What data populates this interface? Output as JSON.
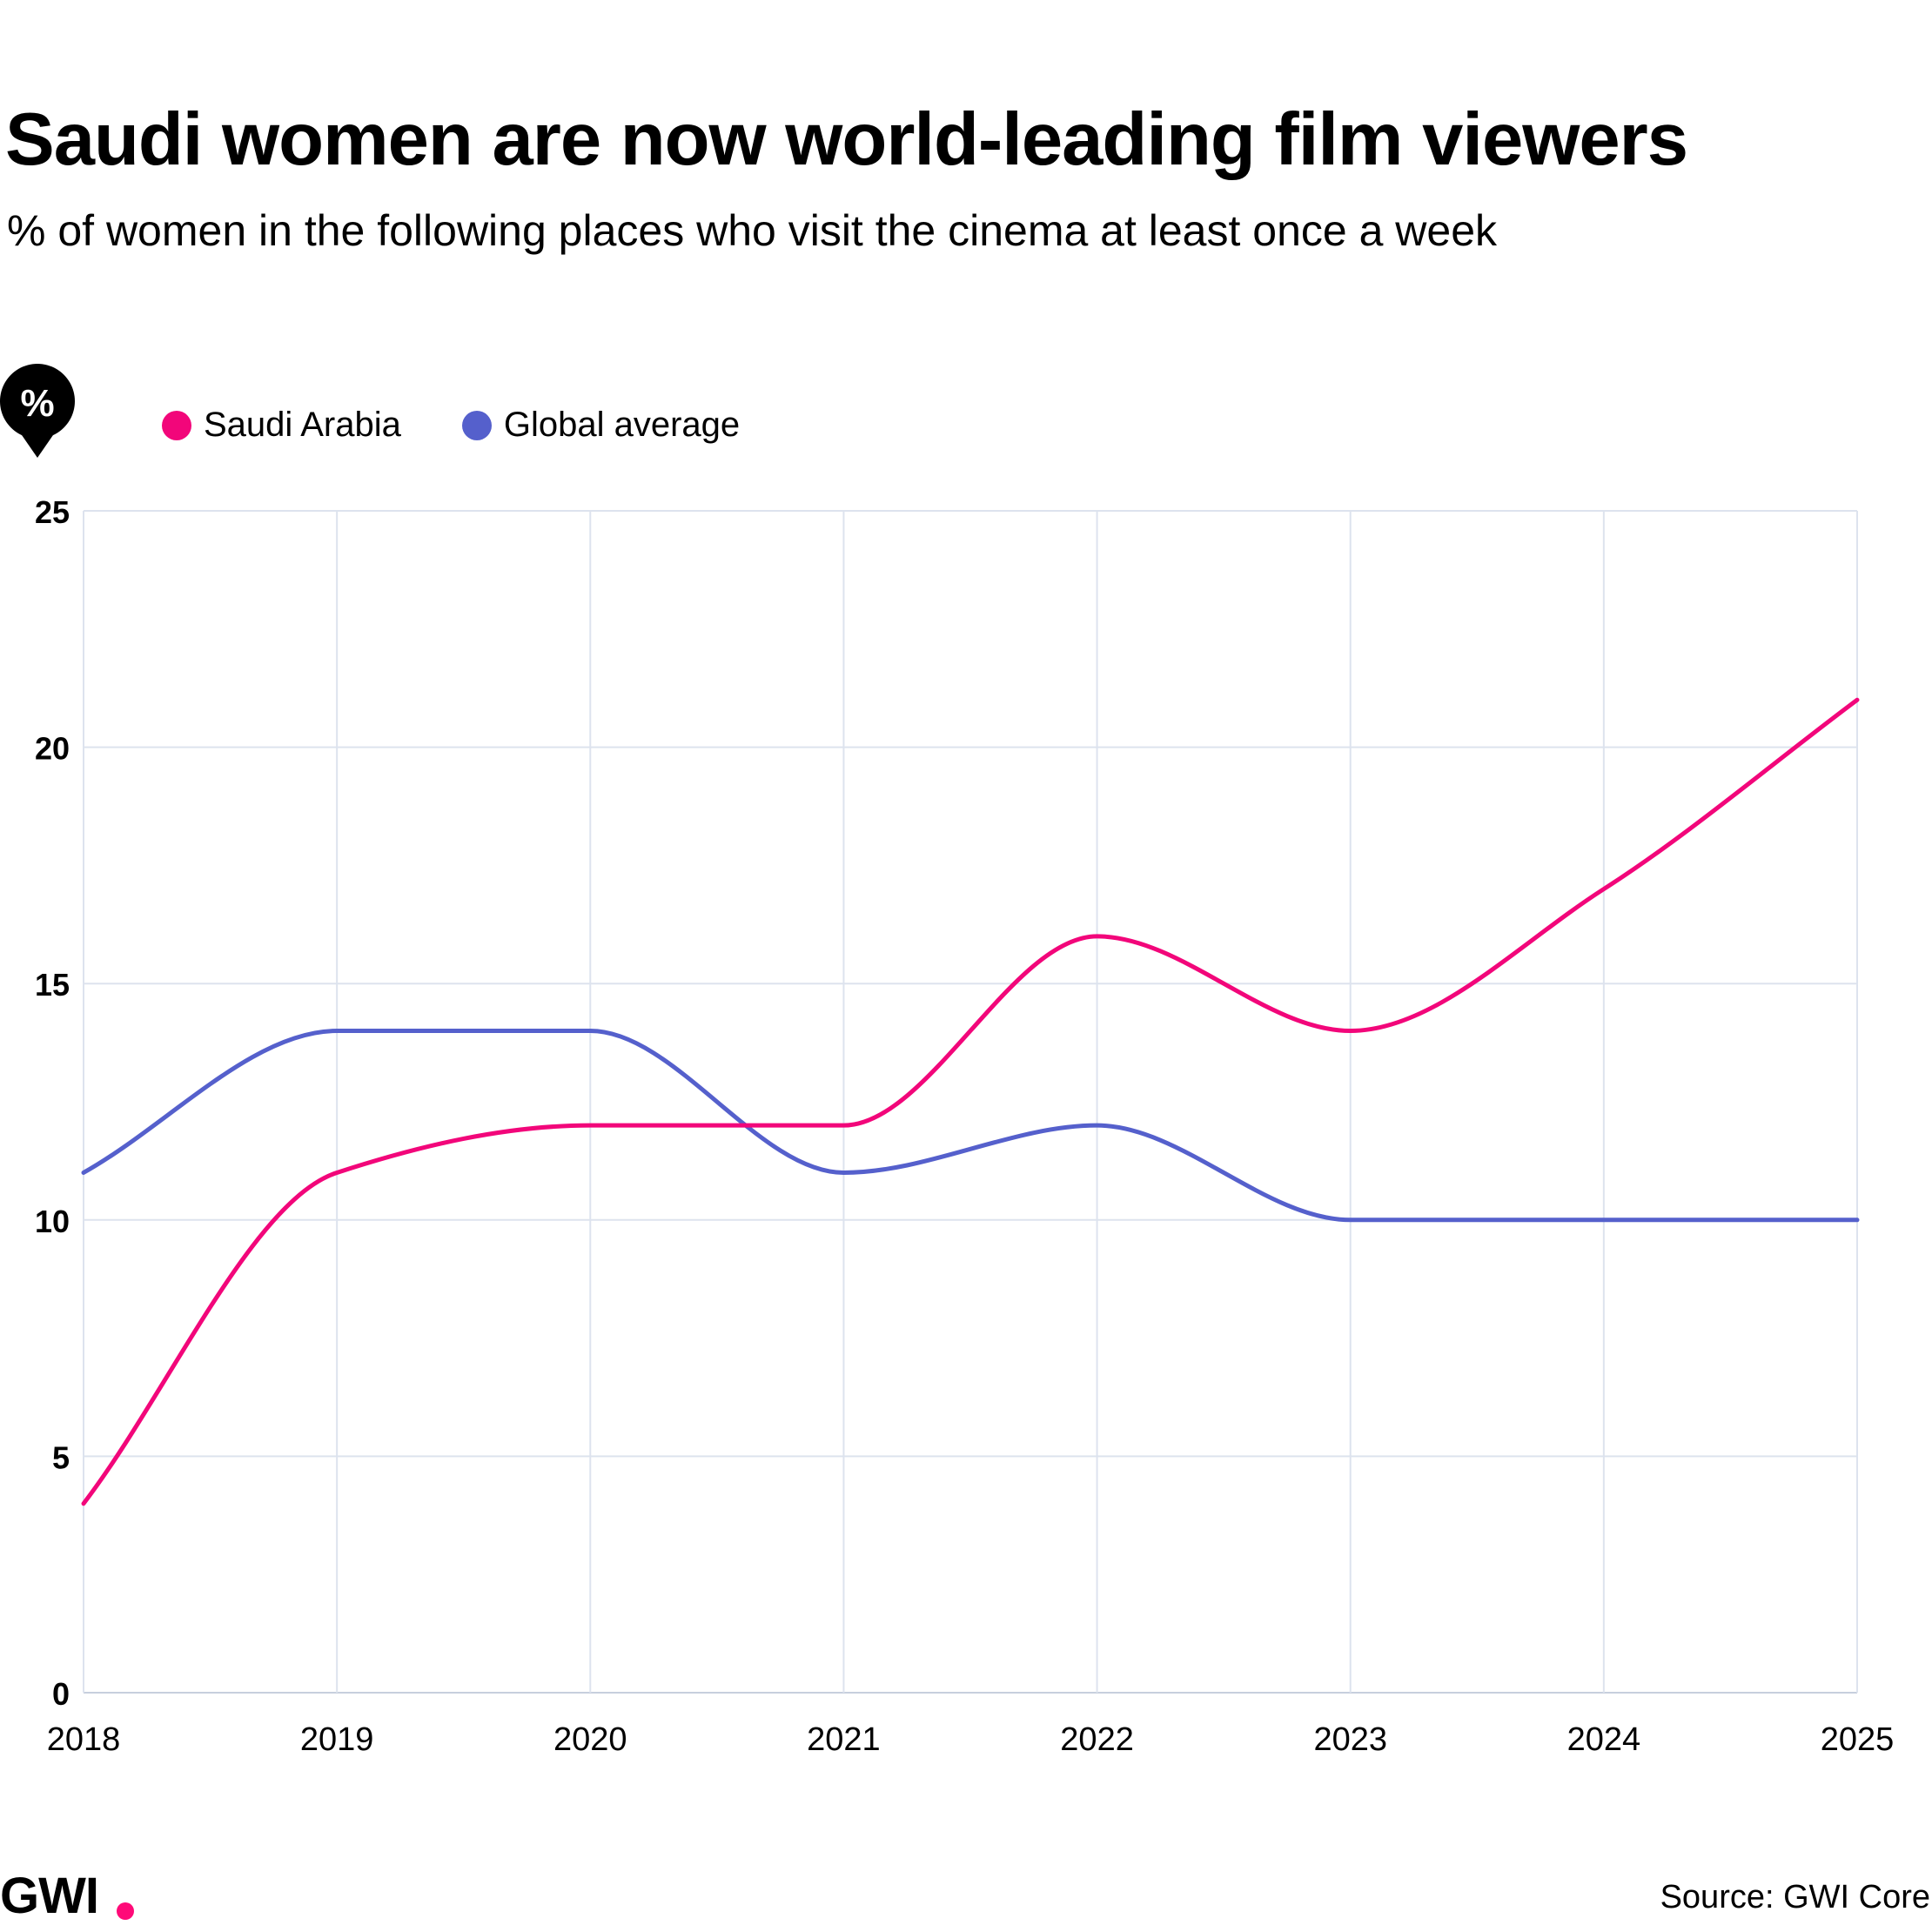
{
  "title": "Saudi women are now world-leading film viewers",
  "subtitle": "% of women in the following places who visit the cinema at least once a week",
  "unit_badge": "%",
  "source": "Source: GWI Core",
  "brand": {
    "logo_text": "GWI",
    "accent": "#ff0a78"
  },
  "colors": {
    "saudi": "#f2067a",
    "global": "#5560cc",
    "grid": "#dde3ee",
    "axis": "#c7cfdd",
    "text": "#000000"
  },
  "legend": [
    {
      "label": "Saudi Arabia",
      "color": "#f2067a"
    },
    {
      "label": "Global average",
      "color": "#5560cc"
    }
  ],
  "chart_data": {
    "type": "line",
    "categories": [
      "2018",
      "2019",
      "2020",
      "2021",
      "2022",
      "2023",
      "2024",
      "2025"
    ],
    "series": [
      {
        "name": "Saudi Arabia",
        "color": "#f2067a",
        "values": [
          4,
          11,
          12,
          12,
          16,
          14,
          17,
          21
        ]
      },
      {
        "name": "Global average",
        "color": "#5560cc",
        "values": [
          11,
          14,
          14,
          11,
          12,
          10,
          10,
          10
        ]
      }
    ],
    "ylim": [
      0,
      25
    ],
    "yticks": [
      "0",
      "5",
      "10",
      "15",
      "20",
      "25"
    ],
    "grid": true,
    "legend_position": "top-left"
  }
}
